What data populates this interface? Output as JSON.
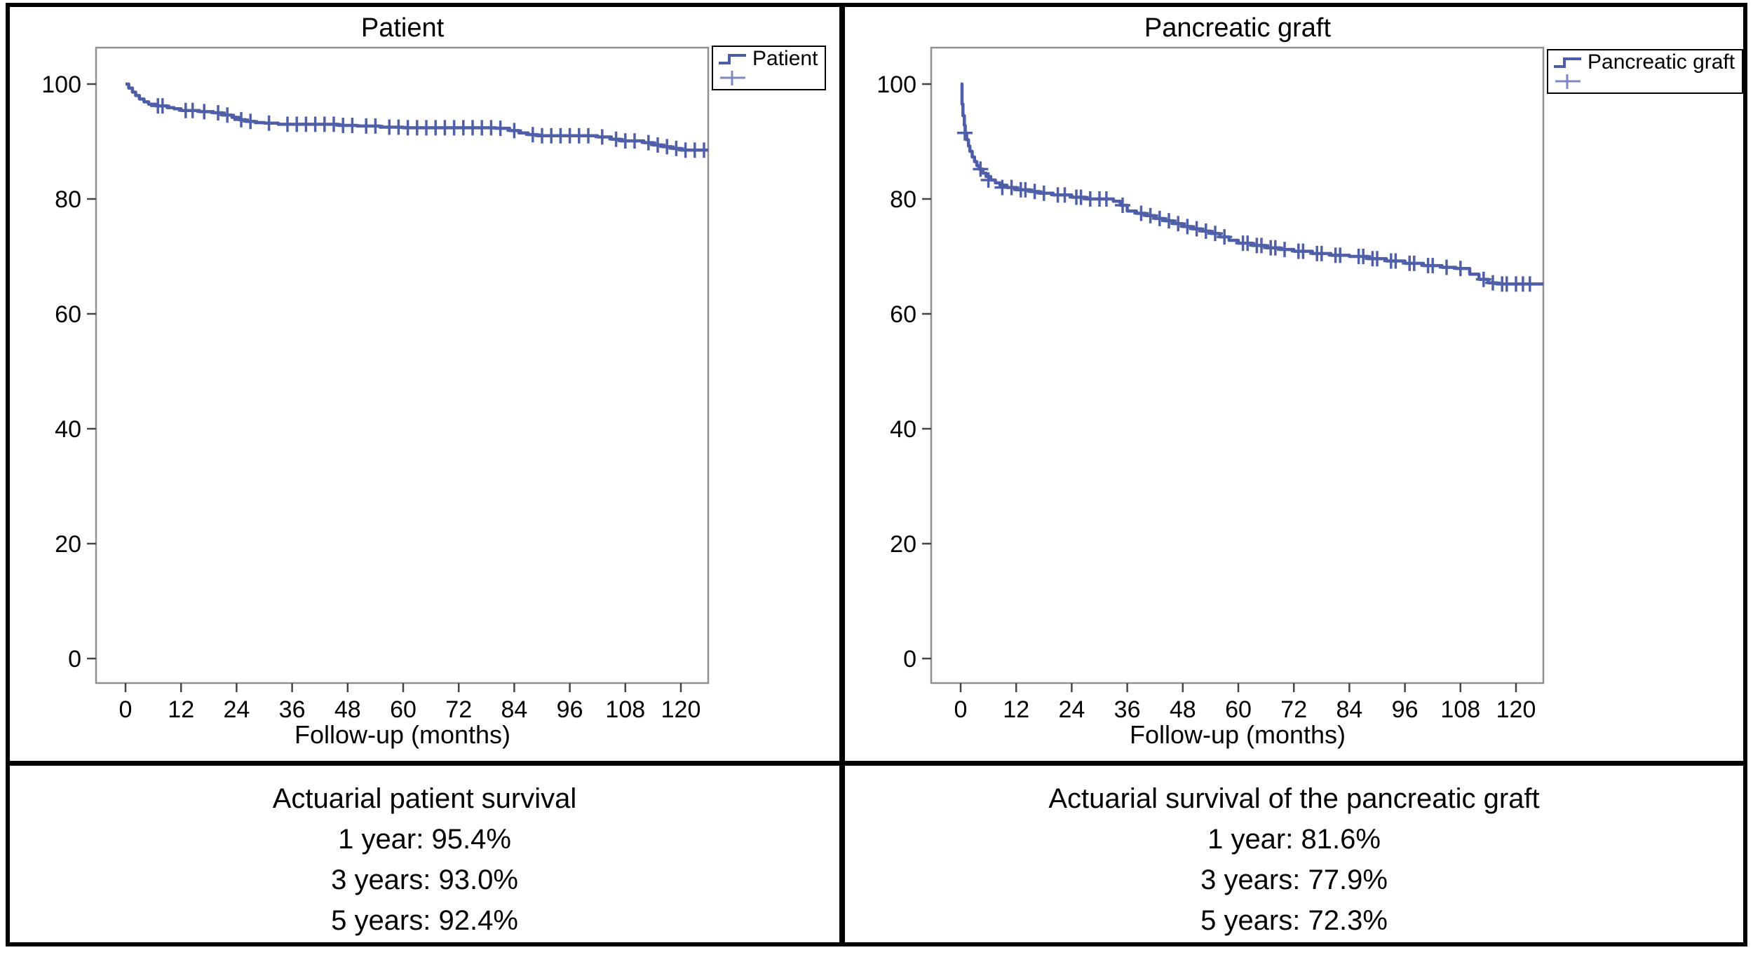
{
  "figure": {
    "line_color": "#4c5ca9",
    "censor_color": "#5060a8",
    "frame_color": "#8f8f8f",
    "tick_color": "#444444",
    "x_ticks": [
      0,
      12,
      24,
      36,
      48,
      60,
      72,
      84,
      96,
      108,
      120
    ],
    "y_ticks": [
      100,
      80,
      60,
      40,
      20,
      0
    ]
  },
  "chart_data": [
    {
      "type": "line",
      "title": "Patient",
      "legend": "Patient",
      "xlabel": "Follow-up (months)",
      "xlim": [
        0,
        126.5
      ],
      "ylim": [
        0,
        106
      ],
      "x_ticks": [
        0,
        12,
        24,
        36,
        48,
        60,
        72,
        84,
        96,
        108,
        120
      ],
      "y_ticks": [
        100,
        80,
        60,
        40,
        20,
        0
      ],
      "legend_position": "top-right",
      "grid": false,
      "end_t": 126.5,
      "steps": [
        [
          0,
          100
        ],
        [
          0.7,
          99.3
        ],
        [
          1.5,
          98.6
        ],
        [
          2.2,
          98.0
        ],
        [
          3,
          97.4
        ],
        [
          4,
          96.9
        ],
        [
          5,
          96.5
        ],
        [
          6.5,
          96.2
        ],
        [
          9,
          95.9
        ],
        [
          10.5,
          95.7
        ],
        [
          12,
          95.4
        ],
        [
          16,
          95.2
        ],
        [
          19,
          95.0
        ],
        [
          21,
          94.6
        ],
        [
          23,
          94.2
        ],
        [
          24.5,
          93.8
        ],
        [
          26,
          93.5
        ],
        [
          28,
          93.3
        ],
        [
          30,
          93.2
        ],
        [
          33,
          93.0
        ],
        [
          46,
          92.8
        ],
        [
          50,
          92.7
        ],
        [
          55,
          92.5
        ],
        [
          60,
          92.4
        ],
        [
          80,
          92.3
        ],
        [
          83,
          91.9
        ],
        [
          85,
          91.5
        ],
        [
          87,
          91.2
        ],
        [
          89,
          91.0
        ],
        [
          102,
          90.8
        ],
        [
          105,
          90.4
        ],
        [
          107,
          90.1
        ],
        [
          112,
          89.8
        ],
        [
          114,
          89.4
        ],
        [
          116,
          89.1
        ],
        [
          118,
          88.8
        ],
        [
          120,
          88.5
        ]
      ],
      "censors": [
        [
          7,
          96.2
        ],
        [
          8,
          96.2
        ],
        [
          13,
          95.4
        ],
        [
          14.5,
          95.4
        ],
        [
          17,
          95.2
        ],
        [
          20,
          95.0
        ],
        [
          22,
          94.6
        ],
        [
          25,
          93.8
        ],
        [
          27,
          93.5
        ],
        [
          31,
          93.2
        ],
        [
          35,
          93.0
        ],
        [
          37,
          93.0
        ],
        [
          39,
          93.0
        ],
        [
          41,
          93.0
        ],
        [
          43,
          93.0
        ],
        [
          45,
          93.0
        ],
        [
          47,
          92.8
        ],
        [
          49,
          92.8
        ],
        [
          52,
          92.7
        ],
        [
          54,
          92.7
        ],
        [
          57,
          92.5
        ],
        [
          59,
          92.5
        ],
        [
          61,
          92.4
        ],
        [
          63,
          92.4
        ],
        [
          65,
          92.4
        ],
        [
          67,
          92.4
        ],
        [
          69,
          92.4
        ],
        [
          71,
          92.4
        ],
        [
          73,
          92.4
        ],
        [
          75,
          92.4
        ],
        [
          77,
          92.4
        ],
        [
          79,
          92.4
        ],
        [
          81,
          92.3
        ],
        [
          84,
          91.9
        ],
        [
          88,
          91.2
        ],
        [
          90,
          91.0
        ],
        [
          92,
          91.0
        ],
        [
          94,
          91.0
        ],
        [
          96,
          91.0
        ],
        [
          98,
          91.0
        ],
        [
          100,
          91.0
        ],
        [
          103,
          90.8
        ],
        [
          106,
          90.4
        ],
        [
          108,
          90.1
        ],
        [
          110,
          90.1
        ],
        [
          113,
          89.8
        ],
        [
          115,
          89.4
        ],
        [
          117,
          89.1
        ],
        [
          119,
          88.8
        ],
        [
          121,
          88.5
        ],
        [
          123,
          88.5
        ],
        [
          125,
          88.5
        ]
      ],
      "annotation": {
        "title": "Actuarial patient survival",
        "lines": [
          "1 year: 95.4%",
          "3 years: 93.0%",
          "5 years: 92.4%"
        ]
      }
    },
    {
      "type": "line",
      "title": "Pancreatic graft",
      "legend": "Pancreatic graft",
      "xlabel": "Follow-up (months)",
      "xlim": [
        0,
        126.5
      ],
      "ylim": [
        0,
        106
      ],
      "x_ticks": [
        0,
        12,
        24,
        36,
        48,
        60,
        72,
        84,
        96,
        108,
        120
      ],
      "y_ticks": [
        100,
        80,
        60,
        40,
        20,
        0
      ],
      "legend_position": "top-right",
      "grid": false,
      "end_t": 126.5,
      "steps": [
        [
          0,
          100
        ],
        [
          0.3,
          96.5
        ],
        [
          0.5,
          94.5
        ],
        [
          0.8,
          92.8
        ],
        [
          1,
          91.5
        ],
        [
          1.3,
          90.3
        ],
        [
          1.7,
          89.2
        ],
        [
          2,
          88.3
        ],
        [
          2.5,
          87.3
        ],
        [
          3,
          86.5
        ],
        [
          3.5,
          85.8
        ],
        [
          4,
          85.2
        ],
        [
          4.8,
          84.5
        ],
        [
          5.5,
          83.9
        ],
        [
          6.5,
          83.3
        ],
        [
          7.5,
          82.8
        ],
        [
          8.5,
          82.4
        ],
        [
          10,
          82.0
        ],
        [
          12,
          81.6
        ],
        [
          15,
          81.3
        ],
        [
          17,
          81.0
        ],
        [
          20,
          80.7
        ],
        [
          24,
          80.3
        ],
        [
          27,
          80.0
        ],
        [
          33,
          79.6
        ],
        [
          34.5,
          78.9
        ],
        [
          36,
          77.9
        ],
        [
          38,
          77.5
        ],
        [
          40,
          77.1
        ],
        [
          42,
          76.6
        ],
        [
          44,
          76.2
        ],
        [
          46,
          75.7
        ],
        [
          48,
          75.2
        ],
        [
          50,
          74.8
        ],
        [
          52,
          74.4
        ],
        [
          54,
          74.0
        ],
        [
          56,
          73.4
        ],
        [
          58,
          72.8
        ],
        [
          60,
          72.3
        ],
        [
          63,
          71.9
        ],
        [
          66,
          71.5
        ],
        [
          69,
          71.2
        ],
        [
          72,
          70.9
        ],
        [
          76,
          70.5
        ],
        [
          80,
          70.2
        ],
        [
          84,
          70.0
        ],
        [
          88,
          69.6
        ],
        [
          92,
          69.2
        ],
        [
          96,
          68.8
        ],
        [
          100,
          68.4
        ],
        [
          104,
          68.1
        ],
        [
          107,
          67.9
        ],
        [
          110,
          66.9
        ],
        [
          112,
          66.0
        ],
        [
          114,
          65.4
        ],
        [
          116,
          65.2
        ]
      ],
      "censors": [
        [
          0.9,
          91.5
        ],
        [
          4.3,
          85.2
        ],
        [
          6,
          83.3
        ],
        [
          9,
          82.0
        ],
        [
          11,
          82.0
        ],
        [
          13,
          81.6
        ],
        [
          14,
          81.6
        ],
        [
          16,
          81.3
        ],
        [
          18,
          81.0
        ],
        [
          21,
          80.7
        ],
        [
          22.5,
          80.7
        ],
        [
          25,
          80.3
        ],
        [
          26,
          80.3
        ],
        [
          28,
          80.0
        ],
        [
          30,
          80.0
        ],
        [
          31.5,
          80.0
        ],
        [
          35,
          78.9
        ],
        [
          39,
          77.5
        ],
        [
          41,
          77.1
        ],
        [
          43,
          76.6
        ],
        [
          45,
          76.2
        ],
        [
          47,
          75.7
        ],
        [
          49,
          75.2
        ],
        [
          51,
          74.8
        ],
        [
          53,
          74.4
        ],
        [
          55,
          74.0
        ],
        [
          57,
          73.4
        ],
        [
          61,
          72.3
        ],
        [
          62,
          72.3
        ],
        [
          64,
          71.9
        ],
        [
          65,
          71.9
        ],
        [
          67,
          71.5
        ],
        [
          68,
          71.5
        ],
        [
          70,
          71.2
        ],
        [
          73,
          70.9
        ],
        [
          74,
          70.9
        ],
        [
          77,
          70.5
        ],
        [
          78,
          70.5
        ],
        [
          81,
          70.2
        ],
        [
          82,
          70.2
        ],
        [
          86,
          70.0
        ],
        [
          87,
          70.0
        ],
        [
          89,
          69.6
        ],
        [
          90,
          69.6
        ],
        [
          93,
          69.2
        ],
        [
          94,
          69.2
        ],
        [
          97,
          68.8
        ],
        [
          98,
          68.8
        ],
        [
          101,
          68.4
        ],
        [
          102,
          68.4
        ],
        [
          105,
          68.1
        ],
        [
          108,
          67.9
        ],
        [
          113,
          66.0
        ],
        [
          115,
          65.4
        ],
        [
          117,
          65.2
        ],
        [
          118,
          65.2
        ],
        [
          120,
          65.2
        ],
        [
          121.5,
          65.2
        ],
        [
          123,
          65.2
        ]
      ],
      "annotation": {
        "title": "Actuarial survival of the pancreatic graft",
        "lines": [
          "1 year: 81.6%",
          "3 years: 77.9%",
          "5 years: 72.3%"
        ]
      }
    }
  ]
}
